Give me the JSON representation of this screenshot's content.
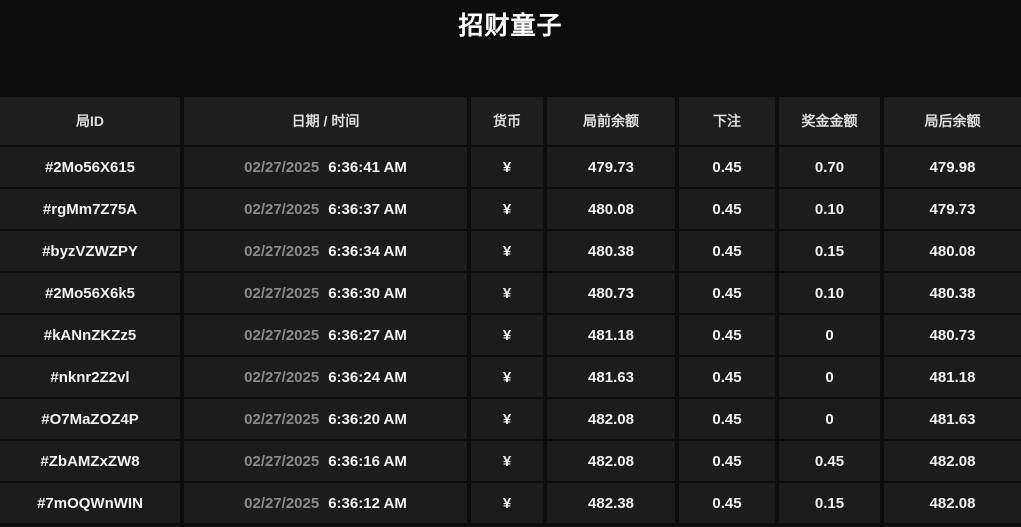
{
  "title": "招财童子",
  "colors": {
    "page_background": "#0d0d0d",
    "header_cell_background": "#1e1e1e",
    "row_cell_background": "#1c1c1c",
    "primary_text": "#f2f2f2",
    "date_text": "#8b8b8b"
  },
  "table": {
    "headers": [
      "局ID",
      "日期 / 时间",
      "货币",
      "局前余额",
      "下注",
      "奖金金额",
      "局后余额"
    ],
    "rows": [
      {
        "id": "#2Mo56X615",
        "date": "02/27/2025",
        "time": "6:36:41 AM",
        "currency": "¥",
        "before": "479.73",
        "bet": "0.45",
        "prize": "0.70",
        "after": "479.98"
      },
      {
        "id": "#rgMm7Z75A",
        "date": "02/27/2025",
        "time": "6:36:37 AM",
        "currency": "¥",
        "before": "480.08",
        "bet": "0.45",
        "prize": "0.10",
        "after": "479.73"
      },
      {
        "id": "#byzVZWZPY",
        "date": "02/27/2025",
        "time": "6:36:34 AM",
        "currency": "¥",
        "before": "480.38",
        "bet": "0.45",
        "prize": "0.15",
        "after": "480.08"
      },
      {
        "id": "#2Mo56X6k5",
        "date": "02/27/2025",
        "time": "6:36:30 AM",
        "currency": "¥",
        "before": "480.73",
        "bet": "0.45",
        "prize": "0.10",
        "after": "480.38"
      },
      {
        "id": "#kANnZKZz5",
        "date": "02/27/2025",
        "time": "6:36:27 AM",
        "currency": "¥",
        "before": "481.18",
        "bet": "0.45",
        "prize": "0",
        "after": "480.73"
      },
      {
        "id": "#nknr2Z2vl",
        "date": "02/27/2025",
        "time": "6:36:24 AM",
        "currency": "¥",
        "before": "481.63",
        "bet": "0.45",
        "prize": "0",
        "after": "481.18"
      },
      {
        "id": "#O7MaZOZ4P",
        "date": "02/27/2025",
        "time": "6:36:20 AM",
        "currency": "¥",
        "before": "482.08",
        "bet": "0.45",
        "prize": "0",
        "after": "481.63"
      },
      {
        "id": "#ZbAMZxZW8",
        "date": "02/27/2025",
        "time": "6:36:16 AM",
        "currency": "¥",
        "before": "482.08",
        "bet": "0.45",
        "prize": "0.45",
        "after": "482.08"
      },
      {
        "id": "#7mOQWnWIN",
        "date": "02/27/2025",
        "time": "6:36:12 AM",
        "currency": "¥",
        "before": "482.38",
        "bet": "0.45",
        "prize": "0.15",
        "after": "482.08"
      }
    ]
  }
}
